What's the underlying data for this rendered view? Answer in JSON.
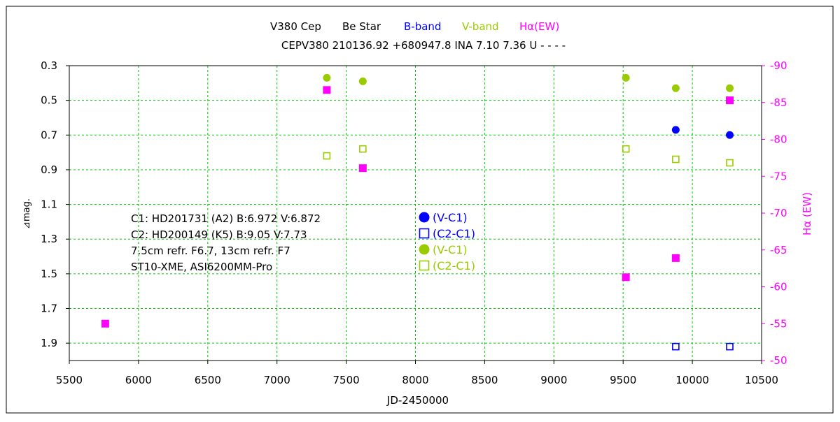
{
  "chart_data": {
    "type": "scatter",
    "title_parts": [
      {
        "text": "V380 Cep",
        "color": "#000000"
      },
      {
        "text": "Be Star",
        "color": "#000000"
      },
      {
        "text": "B-band",
        "color": "#0000ff"
      },
      {
        "text": "V-band",
        "color": "#99cc00"
      },
      {
        "text": "Hα(EW)",
        "color": "#ff00ff"
      }
    ],
    "subtitle": "CEPV380 210136.92 +680947.8 INA 7.10 7.36 U - - - -",
    "xlabel": "JD-2450000",
    "ylabel": "⊿mag.",
    "y2label": "Hα (EW)",
    "xlim": [
      5500,
      10500
    ],
    "ylim": [
      0.3,
      2.0
    ],
    "y_inverted": true,
    "y2lim": [
      -90,
      -50
    ],
    "grid": true,
    "x_ticks": [
      5500,
      6000,
      6500,
      7000,
      7500,
      8000,
      8500,
      9000,
      9500,
      10000,
      10500
    ],
    "y_ticks": [
      "0.3",
      "0.5",
      "0.7",
      "0.9",
      "1.1",
      "1.3",
      "1.5",
      "1.7",
      "1.9"
    ],
    "y2_ticks": [
      "-90",
      "-85",
      "-80",
      "-75",
      "-70",
      "-65",
      "-60",
      "-55",
      "-50"
    ],
    "colors": {
      "b_band": "#0000ff",
      "v_band": "#99cc00",
      "halpha": "#ff00ff",
      "grid": "#00cc00"
    },
    "series": [
      {
        "axis": "left",
        "marker": "filled-circle",
        "color": "#0000ff",
        "points": [
          [
            9880,
            0.67
          ],
          [
            10270,
            0.7
          ]
        ]
      },
      {
        "axis": "left",
        "marker": "open-square",
        "color": "#0000ff",
        "points": [
          [
            9880,
            1.92
          ],
          [
            10270,
            1.92
          ]
        ]
      },
      {
        "axis": "left",
        "marker": "filled-circle",
        "color": "#99cc00",
        "points": [
          [
            7360,
            0.37
          ],
          [
            7620,
            0.39
          ],
          [
            9520,
            0.37
          ],
          [
            9880,
            0.43
          ],
          [
            10270,
            0.43
          ]
        ]
      },
      {
        "axis": "left",
        "marker": "open-square",
        "color": "#99cc00",
        "points": [
          [
            7360,
            0.82
          ],
          [
            7620,
            0.78
          ],
          [
            9520,
            0.78
          ],
          [
            9880,
            0.84
          ],
          [
            10270,
            0.86
          ]
        ]
      },
      {
        "axis": "right",
        "marker": "filled-square",
        "color": "#ff00ff",
        "points": [
          [
            5760,
            -55.0
          ],
          [
            7360,
            -86.7
          ],
          [
            7620,
            -76.1
          ],
          [
            9520,
            -61.3
          ],
          [
            9880,
            -63.9
          ],
          [
            10270,
            -85.3
          ]
        ]
      }
    ],
    "info_lines": [
      "C1: HD201731 (A2)  B:6.972 V:6.872",
      "C2: HD200149 (K5)  B:9.05  V:7.73",
      "7.5cm refr. F6.7,  13cm refr. F7",
      "ST10-XME,  ASI6200MM-Pro"
    ],
    "legend": [
      {
        "marker": "filled-circle",
        "color": "#0000ff",
        "label": "(V-C1)"
      },
      {
        "marker": "open-square",
        "color": "#0000ff",
        "label": "(C2-C1)"
      },
      {
        "marker": "filled-circle",
        "color": "#99cc00",
        "label": "(V-C1)"
      },
      {
        "marker": "open-square",
        "color": "#99cc00",
        "label": "(C2-C1)"
      }
    ]
  }
}
